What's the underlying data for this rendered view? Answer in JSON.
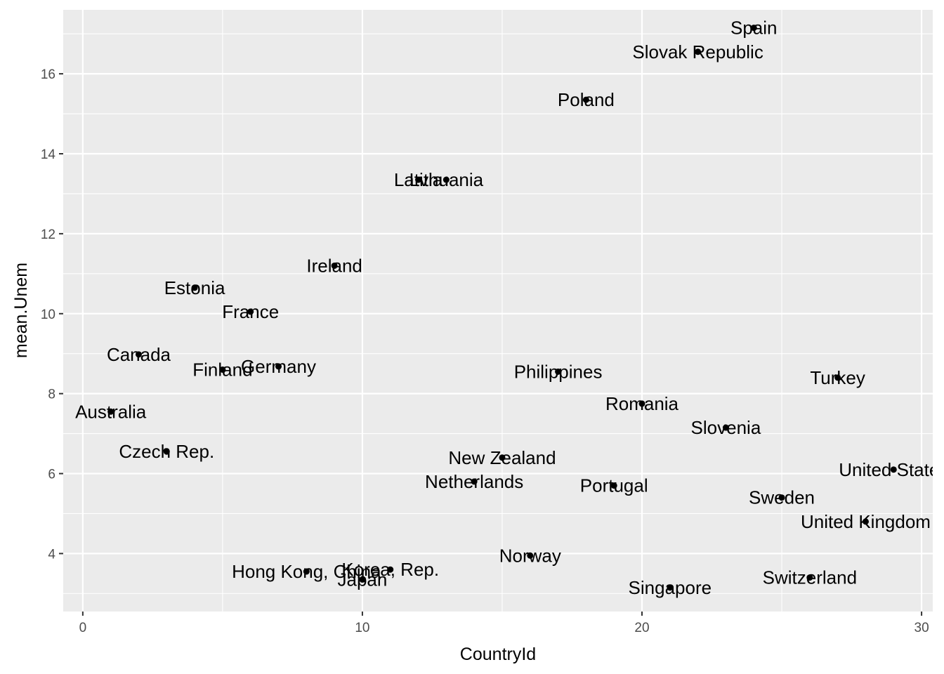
{
  "chart_data": {
    "type": "scatter",
    "xlabel": "CountryId",
    "ylabel": "mean.Unem",
    "xlim": [
      -0.7,
      30.4
    ],
    "ylim": [
      2.55,
      17.6
    ],
    "x_breaks": [
      0,
      10,
      20,
      30
    ],
    "x_minor_breaks": [
      5,
      15,
      25
    ],
    "y_breaks": [
      4,
      6,
      8,
      10,
      12,
      14,
      16
    ],
    "y_minor_breaks": [
      3,
      5,
      7,
      9,
      11,
      13,
      15,
      17
    ],
    "x_tick_labels": [
      "0",
      "10",
      "20",
      "30"
    ],
    "y_tick_labels": [
      "4",
      "6",
      "8",
      "10",
      "12",
      "14",
      "16"
    ],
    "grid": true,
    "legend": "none",
    "colors": {
      "panel": "#EBEBEB",
      "grid": "#FFFFFF",
      "point": "#000000"
    },
    "points": [
      {
        "label": "Australia",
        "x": 1,
        "y": 7.55
      },
      {
        "label": "Canada",
        "x": 2,
        "y": 8.98
      },
      {
        "label": "Czech Rep.",
        "x": 3,
        "y": 6.55
      },
      {
        "label": "Estonia",
        "x": 4,
        "y": 10.65
      },
      {
        "label": "Finland",
        "x": 5,
        "y": 8.6
      },
      {
        "label": "France",
        "x": 6,
        "y": 10.05
      },
      {
        "label": "Germany",
        "x": 7,
        "y": 8.68
      },
      {
        "label": "Hong Kong, China",
        "x": 8,
        "y": 3.55
      },
      {
        "label": "Ireland",
        "x": 9,
        "y": 11.2
      },
      {
        "label": "Japan",
        "x": 10,
        "y": 3.35
      },
      {
        "label": "Korea, Rep.",
        "x": 11,
        "y": 3.6
      },
      {
        "label": "Latvia",
        "x": 12,
        "y": 13.35
      },
      {
        "label": "Lithuania",
        "x": 13,
        "y": 13.35
      },
      {
        "label": "Netherlands",
        "x": 14,
        "y": 5.8
      },
      {
        "label": "New Zealand",
        "x": 15,
        "y": 6.4
      },
      {
        "label": "Norway",
        "x": 16,
        "y": 3.95
      },
      {
        "label": "Philippines",
        "x": 17,
        "y": 8.55
      },
      {
        "label": "Poland",
        "x": 18,
        "y": 15.35
      },
      {
        "label": "Portugal",
        "x": 19,
        "y": 5.7
      },
      {
        "label": "Romania",
        "x": 20,
        "y": 7.75
      },
      {
        "label": "Singapore",
        "x": 21,
        "y": 3.15
      },
      {
        "label": "Slovak Republic",
        "x": 22,
        "y": 16.55
      },
      {
        "label": "Slovenia",
        "x": 23,
        "y": 7.15
      },
      {
        "label": "Spain",
        "x": 24,
        "y": 17.15
      },
      {
        "label": "Sweden",
        "x": 25,
        "y": 5.4
      },
      {
        "label": "Switzerland",
        "x": 26,
        "y": 3.4
      },
      {
        "label": "Turkey",
        "x": 27,
        "y": 8.4
      },
      {
        "label": "United Kingdom",
        "x": 28,
        "y": 4.8
      },
      {
        "label": "United States",
        "x": 29,
        "y": 6.1
      }
    ]
  }
}
